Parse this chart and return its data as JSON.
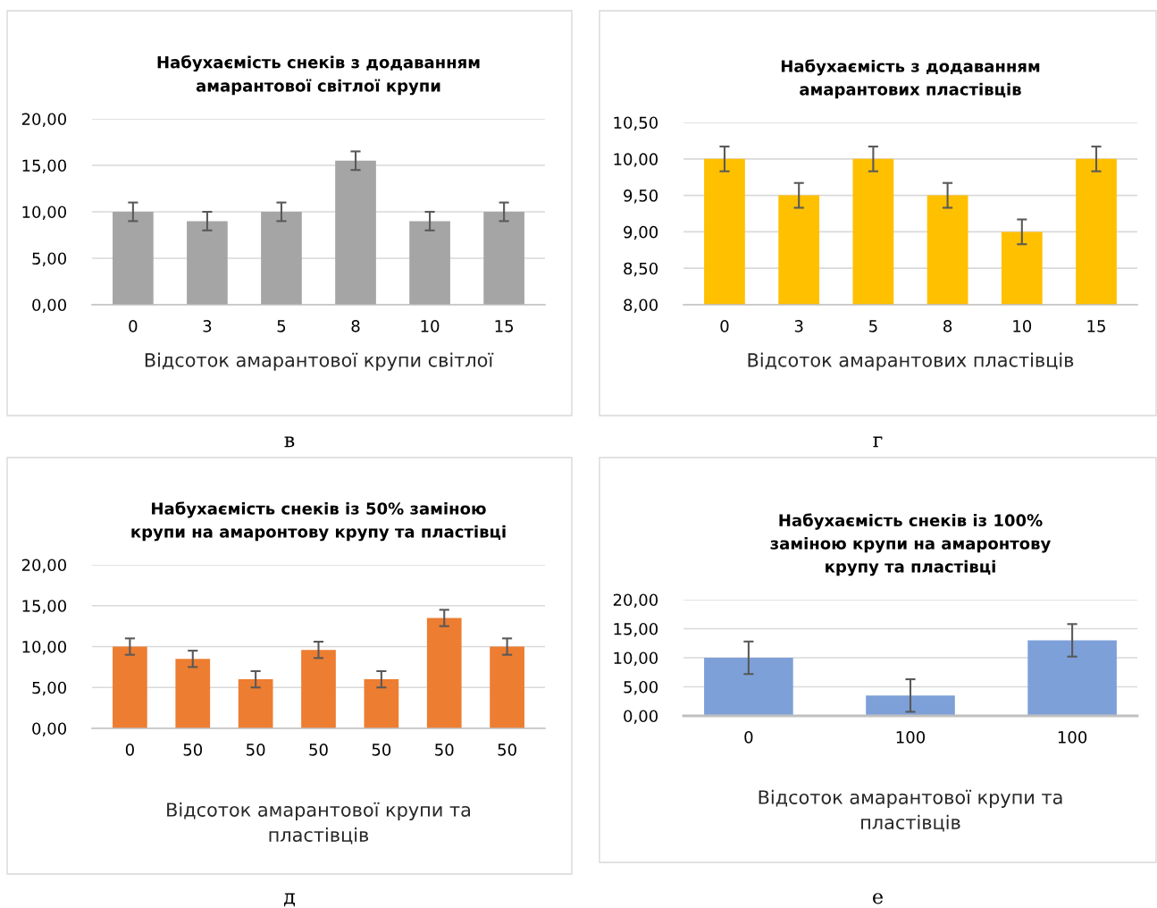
{
  "chart_data": [
    {
      "type": "bar",
      "title": "Набухаємість снеків з додаванням\nамарантової світлої крупи",
      "xlabel": "Відсоток амарантової крупи світлої",
      "categories": [
        "0",
        "3",
        "5",
        "8",
        "10",
        "15"
      ],
      "values": [
        10,
        9,
        10,
        15.5,
        9,
        10
      ],
      "errors": [
        1,
        1,
        1,
        1,
        1,
        1
      ],
      "color": "#a5a5a5",
      "ylim": [
        0,
        20
      ],
      "yticks": [
        {
          "value": 0,
          "label": "0,00"
        },
        {
          "value": 5,
          "label": "5,00"
        },
        {
          "value": 10,
          "label": "10,00"
        },
        {
          "value": 15,
          "label": "15,00"
        },
        {
          "value": 20,
          "label": "20,00"
        }
      ],
      "grid": "y",
      "annotations": [
        "в"
      ]
    },
    {
      "type": "bar",
      "title": "Набухаємість з додаванням\nамарантових пластівців",
      "xlabel": "Відсоток амарантових пластівців",
      "categories": [
        "0",
        "3",
        "5",
        "8",
        "10",
        "15"
      ],
      "values": [
        10,
        9.5,
        10,
        9.5,
        9,
        10
      ],
      "errors": [
        0.17,
        0.17,
        0.17,
        0.17,
        0.17,
        0.17
      ],
      "color": "#ffc000",
      "ylim": [
        8,
        10.5
      ],
      "yticks": [
        {
          "value": 8,
          "label": "8,00"
        },
        {
          "value": 8.5,
          "label": "8,50"
        },
        {
          "value": 9,
          "label": "9,00"
        },
        {
          "value": 9.5,
          "label": "9,50"
        },
        {
          "value": 10,
          "label": "10,00"
        },
        {
          "value": 10.5,
          "label": "10,50"
        }
      ],
      "grid": "y",
      "annotations": [
        "г"
      ]
    },
    {
      "type": "bar",
      "title": "Набухаємість снеків із 50% заміною\nкрупи на амаронтову крупу та пластівці",
      "xlabel": "Відсоток амарантової крупи та\nпластівців",
      "categories": [
        "0",
        "50",
        "50",
        "50",
        "50",
        "50",
        "50"
      ],
      "values": [
        10,
        8.5,
        6,
        9.6,
        6,
        13.5,
        10
      ],
      "errors": [
        1,
        1,
        1,
        1,
        1,
        1,
        1
      ],
      "color": "#ed7d31",
      "ylim": [
        0,
        20
      ],
      "yticks": [
        {
          "value": 0,
          "label": "0,00"
        },
        {
          "value": 5,
          "label": "5,00"
        },
        {
          "value": 10,
          "label": "10,00"
        },
        {
          "value": 15,
          "label": "15,00"
        },
        {
          "value": 20,
          "label": "20,00"
        }
      ],
      "grid": "y",
      "annotations": [
        "д"
      ]
    },
    {
      "type": "bar",
      "title": "Набухаємість снеків із 100%\nзаміною крупи на амаронтову\nкрупу та пластівці",
      "xlabel": "Відсоток амарантової крупи та\nпластівців",
      "categories": [
        "0",
        "100",
        "100"
      ],
      "values": [
        10,
        3.5,
        13
      ],
      "errors": [
        2.8,
        2.8,
        2.8
      ],
      "color": "#7da0d8",
      "ylim": [
        0,
        20
      ],
      "yticks": [
        {
          "value": 0,
          "label": "0,00"
        },
        {
          "value": 5,
          "label": "5,00"
        },
        {
          "value": 10,
          "label": "10,00"
        },
        {
          "value": 15,
          "label": "15,00"
        },
        {
          "value": 20,
          "label": "20,00"
        }
      ],
      "grid": "y",
      "annotations": [
        "е"
      ]
    }
  ]
}
